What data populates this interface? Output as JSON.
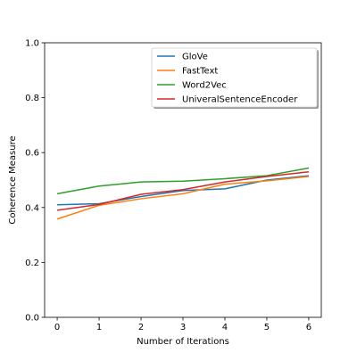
{
  "chart_data": {
    "type": "line",
    "xlabel": "Number of Iterations",
    "ylabel": "Coherence Measure",
    "x": [
      0,
      1,
      2,
      3,
      4,
      5,
      6
    ],
    "xticks": [
      "0",
      "1",
      "2",
      "3",
      "4",
      "5",
      "6"
    ],
    "yticks": [
      "0.0",
      "0.2",
      "0.4",
      "0.6",
      "0.8",
      "1.0"
    ],
    "xlim": [
      -0.3,
      6.3
    ],
    "ylim": [
      0,
      1.0
    ],
    "grid": false,
    "legend_position": "top-right",
    "series": [
      {
        "name": "GloVe",
        "color": "#1f77b4",
        "values": [
          0.41,
          0.414,
          0.44,
          0.462,
          0.468,
          0.5,
          0.516
        ]
      },
      {
        "name": "FastText",
        "color": "#ff7f0e",
        "values": [
          0.358,
          0.408,
          0.432,
          0.45,
          0.485,
          0.497,
          0.513
        ]
      },
      {
        "name": "Word2Vec",
        "color": "#2ca02c",
        "values": [
          0.45,
          0.478,
          0.493,
          0.496,
          0.505,
          0.516,
          0.544
        ]
      },
      {
        "name": "UniveralSentenceEncoder",
        "color": "#d62728",
        "values": [
          0.39,
          0.411,
          0.448,
          0.465,
          0.493,
          0.513,
          0.53
        ]
      }
    ]
  }
}
